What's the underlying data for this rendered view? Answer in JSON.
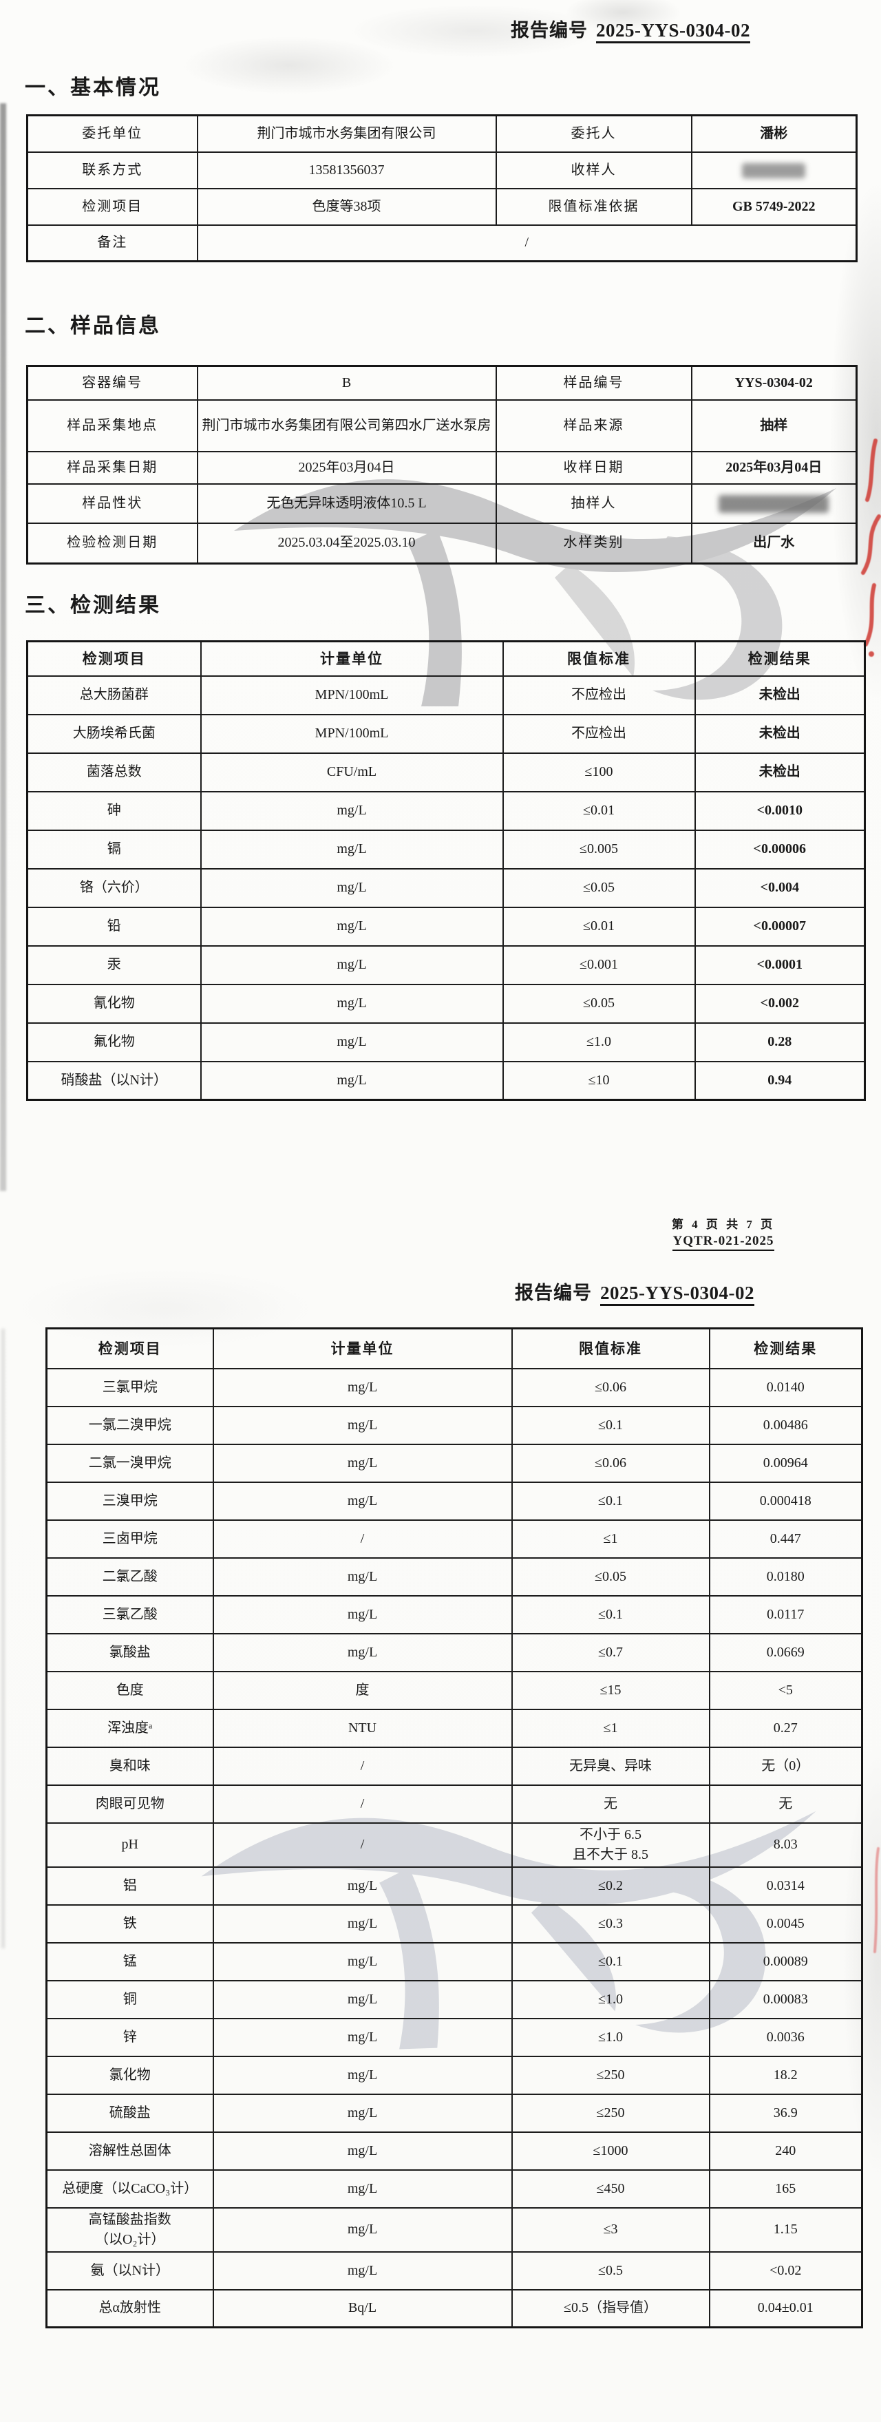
{
  "header": {
    "report_no_label": "报告编号",
    "report_no": "2025-YYS-0304-02"
  },
  "sections": {
    "basic": "一、基本情况",
    "sample": "二、样品信息",
    "results": "三、检测结果"
  },
  "basic_info": {
    "rows": [
      {
        "cells": [
          "委托单位",
          "荆门市城市水务集团有限公司",
          "委托人",
          "潘彬"
        ]
      },
      {
        "cells": [
          "联系方式",
          "13581356037",
          "收样人",
          {
            "redacted": true
          }
        ]
      },
      {
        "cells": [
          "检测项目",
          "色度等38项",
          "限值标准依据",
          "GB 5749-2022"
        ]
      },
      {
        "cells": [
          "备注",
          "/"
        ],
        "merge_last": 3
      }
    ]
  },
  "sample_info": {
    "rows": [
      {
        "cells": [
          "容器编号",
          "B",
          "样品编号",
          "YYS-0304-02"
        ]
      },
      {
        "cells": [
          "样品采集地点",
          "荆门市城市水务集团有限公司第四水厂送水泵房",
          "样品来源",
          "抽样"
        ]
      },
      {
        "cells": [
          "样品采集日期",
          "2025年03月04日",
          "收样日期",
          "2025年03月04日"
        ]
      },
      {
        "cells": [
          "样品性状",
          "无色无异味透明液体10.5 L",
          "抽样人",
          {
            "redacted": true,
            "wide": true
          }
        ]
      },
      {
        "cells": [
          "检验检测日期",
          "2025.03.04至2025.03.10",
          "水样类别",
          "出厂水"
        ]
      }
    ]
  },
  "results_header": [
    "检测项目",
    "计量单位",
    "限值标准",
    "检测结果"
  ],
  "results_page1": {
    "rows": [
      [
        "总大肠菌群",
        "MPN/100mL",
        "不应检出",
        "未检出"
      ],
      [
        "大肠埃希氏菌",
        "MPN/100mL",
        "不应检出",
        "未检出"
      ],
      [
        "菌落总数",
        "CFU/mL",
        "≤100",
        "未检出"
      ],
      [
        "砷",
        "mg/L",
        "≤0.01",
        "<0.0010"
      ],
      [
        "镉",
        "mg/L",
        "≤0.005",
        "<0.00006"
      ],
      [
        "铬（六价）",
        "mg/L",
        "≤0.05",
        "<0.004"
      ],
      [
        "铅",
        "mg/L",
        "≤0.01",
        "<0.00007"
      ],
      [
        "汞",
        "mg/L",
        "≤0.001",
        "<0.0001"
      ],
      [
        "氰化物",
        "mg/L",
        "≤0.05",
        "<0.002"
      ],
      [
        "氟化物",
        "mg/L",
        "≤1.0",
        "0.28"
      ],
      [
        "硝酸盐（以N计）",
        "mg/L",
        "≤10",
        "0.94"
      ]
    ]
  },
  "results_page2": {
    "rows": [
      [
        "三氯甲烷",
        "mg/L",
        "≤0.06",
        "0.0140"
      ],
      [
        "一氯二溴甲烷",
        "mg/L",
        "≤0.1",
        "0.00486"
      ],
      [
        "二氯一溴甲烷",
        "mg/L",
        "≤0.06",
        "0.00964"
      ],
      [
        "三溴甲烷",
        "mg/L",
        "≤0.1",
        "0.000418"
      ],
      [
        "三卤甲烷",
        "/",
        "≤1",
        "0.447"
      ],
      [
        "二氯乙酸",
        "mg/L",
        "≤0.05",
        "0.0180"
      ],
      [
        "三氯乙酸",
        "mg/L",
        "≤0.1",
        "0.0117"
      ],
      [
        "氯酸盐",
        "mg/L",
        "≤0.7",
        "0.0669"
      ],
      [
        "色度",
        "度",
        "≤15",
        "<5"
      ],
      [
        "浑浊度ᵃ",
        "NTU",
        "≤1",
        "0.27"
      ],
      [
        "臭和味",
        "/",
        "无异臭、异味",
        "无（0）"
      ],
      [
        "肉眼可见物",
        "/",
        "无",
        "无"
      ],
      [
        "pH",
        "/",
        "不小于 6.5\n且不大于 8.5",
        "8.03"
      ],
      [
        "铝",
        "mg/L",
        "≤0.2",
        "0.0314"
      ],
      [
        "铁",
        "mg/L",
        "≤0.3",
        "0.0045"
      ],
      [
        "锰",
        "mg/L",
        "≤0.1",
        "0.00089"
      ],
      [
        "铜",
        "mg/L",
        "≤1.0",
        "0.00083"
      ],
      [
        "锌",
        "mg/L",
        "≤1.0",
        "0.0036"
      ],
      [
        "氯化物",
        "mg/L",
        "≤250",
        "18.2"
      ],
      [
        "硫酸盐",
        "mg/L",
        "≤250",
        "36.9"
      ],
      [
        "溶解性总固体",
        "mg/L",
        "≤1000",
        "240"
      ],
      [
        "总硬度（以CaCO₃计）",
        "mg/L",
        "≤450",
        "165"
      ],
      [
        "高锰酸盐指数\n（以O₂计）",
        "mg/L",
        "≤3",
        "1.15"
      ],
      [
        "氨（以N计）",
        "mg/L",
        "≤0.5",
        "<0.02"
      ],
      [
        "总α放射性",
        "Bq/L",
        "≤0.5（指导值）",
        "0.04±0.01"
      ]
    ]
  },
  "footer": {
    "page_info": "第 4 页 共 7 页",
    "doc_code": "YQTR-021-2025"
  }
}
